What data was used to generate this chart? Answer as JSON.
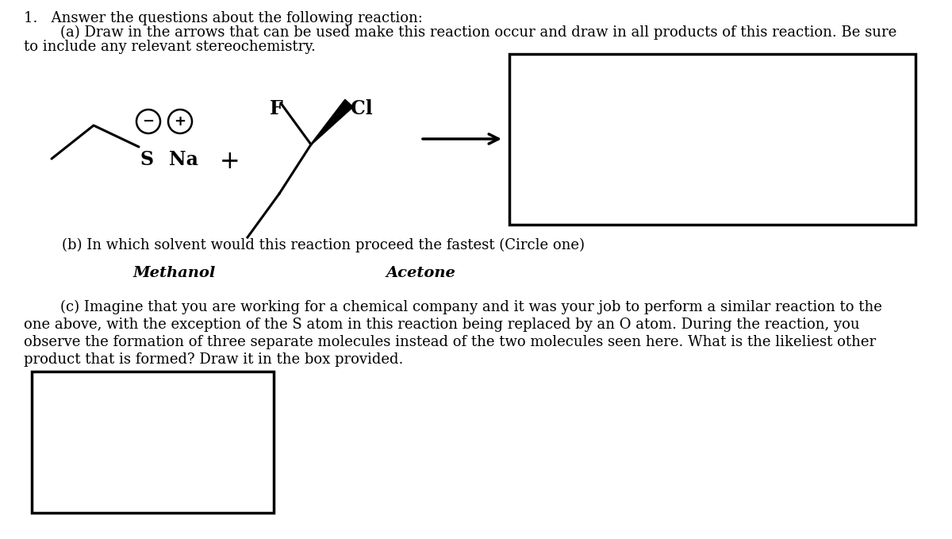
{
  "title_line": "1.   Answer the questions about the following reaction:",
  "part_a_line1": "        (a) Draw in the arrows that can be used make this reaction occur and draw in all products of this reaction. Be sure",
  "part_a_line2": "to include any relevant stereochemistry.",
  "part_b_line": "    (b) In which solvent would this reaction proceed the fastest (Circle one)",
  "methanol_label": "Methanol",
  "acetone_label": "Acetone",
  "part_c_text1": "        (c) Imagine that you are working for a chemical company and it was your job to perform a similar reaction to the",
  "part_c_text2": "one above, with the exception of the S atom in this reaction being replaced by an O atom. During the reaction, you",
  "part_c_text3": "observe the formation of three separate molecules instead of the two molecules seen here. What is the likeliest other",
  "part_c_text4": "product that is formed? Draw it in the box provided.",
  "bg_color": "#ffffff",
  "text_color": "#000000",
  "font_size_main": 13.0
}
